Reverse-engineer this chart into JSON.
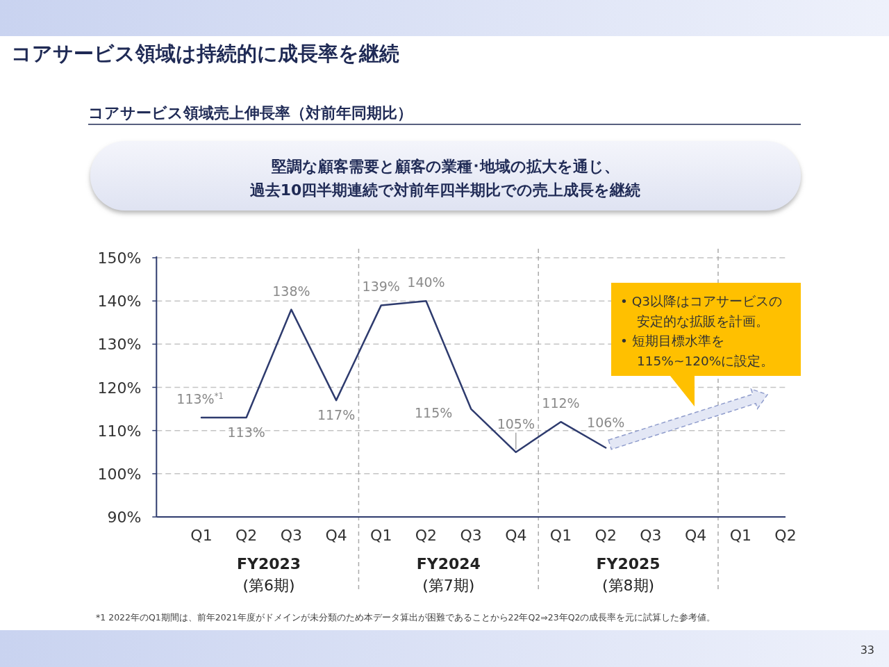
{
  "chart_data": {
    "type": "line",
    "title": "コアサービス領域は持続的に成長率を継続",
    "subtitle": "コアサービス領域売上伸長率（対前年同期比）",
    "categories": [
      "Q1",
      "Q2",
      "Q3",
      "Q4",
      "Q1",
      "Q2",
      "Q3",
      "Q4",
      "Q1",
      "Q2",
      "Q3",
      "Q4",
      "Q1",
      "Q2"
    ],
    "series": [
      {
        "color": "#2e3b6e",
        "values": [
          113,
          113,
          138,
          117,
          139,
          140,
          115,
          105,
          112,
          106,
          null,
          null,
          null,
          null
        ],
        "value_labels": [
          "113%$^{*1}$",
          "113%",
          "138%",
          "117%",
          "139%",
          "140%",
          "115%",
          "105%",
          "112%",
          "106%",
          null,
          null,
          null,
          null
        ]
      }
    ],
    "ylim": [
      90,
      150
    ],
    "yticks": [
      {
        "value": 90,
        "label": "90%"
      },
      {
        "value": 100,
        "label": "100%"
      },
      {
        "value": 110,
        "label": "110%"
      },
      {
        "value": 120,
        "label": "120%"
      },
      {
        "value": 130,
        "label": "130%"
      },
      {
        "value": 140,
        "label": "140%"
      },
      {
        "value": 150,
        "label": "150%"
      }
    ],
    "grid": "y",
    "marker": "none",
    "line_style": "solid",
    "annotations": [
      "堅調な顧客需要と顧客の業種･地域の拡大を通じ、",
      "過去10四半期連続で対前年四半期比での売上成長を継続",
      "FY2023\n(第6期)",
      "FY2024\n(第7期)",
      "FY2025\n(第8期)",
      "• Q3以降はコアサービスの",
      "安定的な拡販を計画。",
      "• 短期目標水準を",
      "115%~120%に設定。",
      "*1 2022年のQ1期間は、前年2021年度がドメインが未分類のため本データ算出が困難であることから22年Q2⇒23年Q2の成長率を元に試算した参考値。",
      "33"
    ]
  }
}
